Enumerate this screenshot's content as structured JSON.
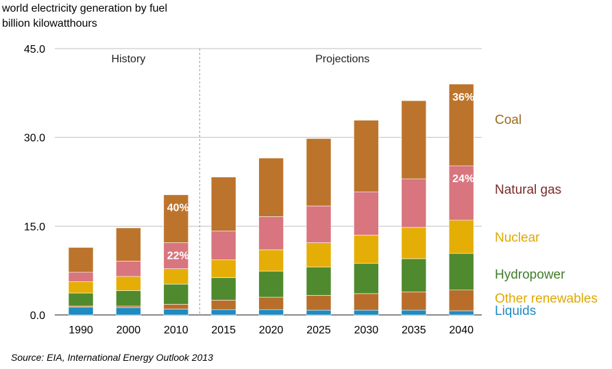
{
  "header": {
    "title": "world electricity generation by fuel",
    "units": "billion kilowatthours"
  },
  "source": "Source: EIA, International Energy Outlook 2013",
  "chart_data": {
    "type": "bar",
    "stacked": true,
    "categories": [
      "1990",
      "2000",
      "2010",
      "2015",
      "2020",
      "2025",
      "2030",
      "2035",
      "2040"
    ],
    "ylim": [
      0,
      45
    ],
    "yticks": [
      "0.0",
      "15.0",
      "30.0",
      "45.0"
    ],
    "grid": true,
    "periods": [
      {
        "label": "History",
        "categories": [
          "1990",
          "2000",
          "2010"
        ]
      },
      {
        "label": "Projections",
        "categories": [
          "2015",
          "2020",
          "2025",
          "2030",
          "2035",
          "2040"
        ]
      }
    ],
    "series": [
      {
        "name": "Liquids",
        "color": "#1E8BC3",
        "values": [
          1.3,
          1.2,
          1.0,
          0.9,
          0.9,
          0.8,
          0.8,
          0.8,
          0.7
        ]
      },
      {
        "name": "Other renewables",
        "color": "#B86E2A",
        "values": [
          0.2,
          0.3,
          0.8,
          1.6,
          2.1,
          2.5,
          2.8,
          3.1,
          3.5
        ]
      },
      {
        "name": "Hydropower",
        "color": "#4F8A2E",
        "values": [
          2.2,
          2.6,
          3.4,
          3.8,
          4.4,
          4.8,
          5.1,
          5.6,
          6.2
        ]
      },
      {
        "name": "Nuclear",
        "color": "#E5AE06",
        "values": [
          1.9,
          2.4,
          2.6,
          3.0,
          3.6,
          4.1,
          4.8,
          5.3,
          5.6
        ]
      },
      {
        "name": "Natural gas",
        "color": "#D8757F",
        "values": [
          1.6,
          2.6,
          4.4,
          4.9,
          5.6,
          6.2,
          7.3,
          8.2,
          9.2
        ]
      },
      {
        "name": "Coal",
        "color": "#BC742C",
        "values": [
          4.2,
          5.6,
          8.1,
          9.1,
          9.9,
          11.4,
          12.1,
          13.2,
          13.8
        ]
      }
    ],
    "data_labels": [
      {
        "category": "2010",
        "series": "Coal",
        "text": "40%"
      },
      {
        "category": "2010",
        "series": "Natural gas",
        "text": "22%"
      },
      {
        "category": "2040",
        "series": "Coal",
        "text": "36%"
      },
      {
        "category": "2040",
        "series": "Natural gas",
        "text": "24%"
      }
    ],
    "legend": {
      "placement": "right",
      "entries": [
        {
          "label": "Coal",
          "color": "#9B6A1A"
        },
        {
          "label": "Natural gas",
          "color": "#7A2A2A"
        },
        {
          "label": "Nuclear",
          "color": "#E0A800"
        },
        {
          "label": "Hydropower",
          "color": "#3F7D2A"
        },
        {
          "label": "Other renewables",
          "color": "#E0A800"
        },
        {
          "label": "Liquids",
          "color": "#1E8BC3"
        }
      ]
    }
  }
}
